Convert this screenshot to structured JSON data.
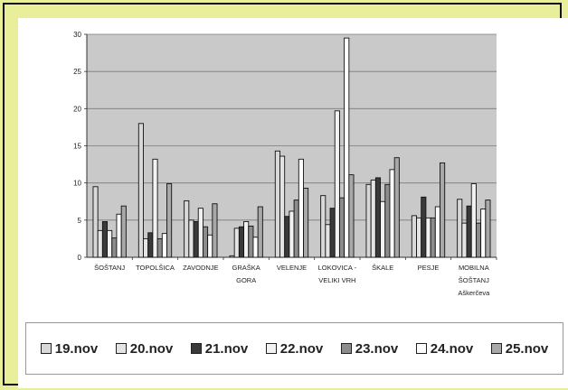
{
  "chart_data": {
    "type": "bar",
    "title": "",
    "xlabel": "",
    "ylabel": "",
    "ylim": [
      0,
      30
    ],
    "yticks": [
      "0",
      "5",
      "10",
      "15",
      "20",
      "25",
      "30"
    ],
    "grid": true,
    "legend_position": "bottom",
    "categories": [
      [
        "ŠOŠTANJ"
      ],
      [
        "TOPOLŠICA"
      ],
      [
        "ZAVODNJE"
      ],
      [
        "GRAŠKA",
        "GORA"
      ],
      [
        "VELENJE"
      ],
      [
        "LOKOVICA -",
        "VELIKI VRH"
      ],
      [
        "ŠKALE"
      ],
      [
        "PESJE"
      ],
      [
        "MOBILNA",
        "ŠOŠTANJ",
        "Aškerčeva"
      ]
    ],
    "series": [
      {
        "name": "19.nov",
        "color": "#d8d8d8",
        "values": [
          9.5,
          18.0,
          7.6,
          0.2,
          14.3,
          8.3,
          9.8,
          5.6,
          7.8
        ]
      },
      {
        "name": "20.nov",
        "color": "#e4e4e4",
        "values": [
          3.6,
          2.5,
          5.0,
          3.9,
          13.6,
          4.4,
          10.4,
          5.3,
          4.6
        ]
      },
      {
        "name": "21.nov",
        "color": "#3a3a3a",
        "values": [
          4.8,
          3.3,
          4.8,
          4.1,
          5.5,
          6.6,
          10.7,
          8.1,
          6.9
        ]
      },
      {
        "name": "22.nov",
        "color": "#f2f2f2",
        "values": [
          3.6,
          13.2,
          6.6,
          4.8,
          6.2,
          19.7,
          7.5,
          5.3,
          9.9
        ]
      },
      {
        "name": "23.nov",
        "color": "#8c8c8c",
        "values": [
          2.6,
          2.5,
          4.1,
          4.2,
          7.7,
          8.0,
          9.8,
          5.3,
          4.6
        ]
      },
      {
        "name": "24.nov",
        "color": "#ffffff",
        "values": [
          5.8,
          3.2,
          3.0,
          2.7,
          13.2,
          29.5,
          11.8,
          6.8,
          6.5
        ]
      },
      {
        "name": "25.nov",
        "color": "#a8a8a8",
        "values": [
          6.9,
          9.9,
          7.2,
          6.8,
          9.3,
          11.1,
          13.4,
          12.7,
          7.7
        ]
      }
    ]
  }
}
